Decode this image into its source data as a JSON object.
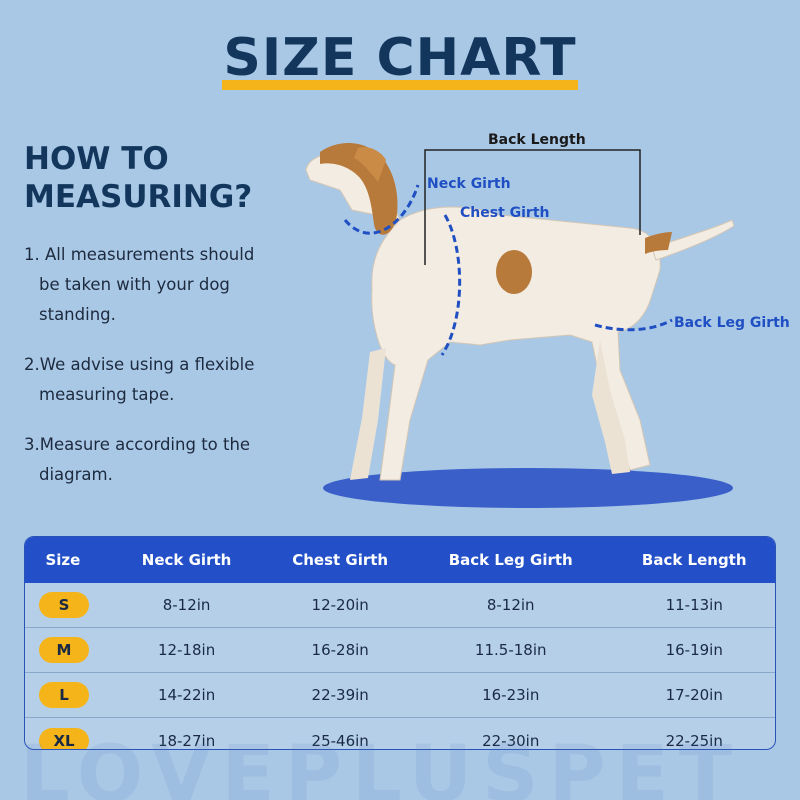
{
  "title": "SIZE CHART",
  "how_to": {
    "heading_line1": "HOW TO",
    "heading_line2": "MEASURING?",
    "steps": [
      {
        "lines": [
          "1. All measurements should",
          "be taken with your dog",
          "standing."
        ]
      },
      {
        "lines": [
          "2.We advise using a flexible",
          "measuring tape."
        ]
      },
      {
        "lines": [
          "3.Measure according to the",
          "diagram."
        ]
      }
    ]
  },
  "diagram": {
    "labels": {
      "back_length": "Back Length",
      "neck_girth": "Neck Girth",
      "chest_girth": "Chest Girth",
      "back_leg_girth": "Back Leg Girth"
    },
    "colors": {
      "measure_line": "#1f4fc2",
      "floor_shadow": "#3a5fc8",
      "dog_body": "#f3ece3",
      "dog_spot": "#b87a3a"
    }
  },
  "table": {
    "headers": [
      "Size",
      "Neck Girth",
      "Chest Girth",
      "Back Leg Girth",
      "Back Length"
    ],
    "rows": [
      {
        "size": "S",
        "neck": "8-12in",
        "chest": "12-20in",
        "leg": "8-12in",
        "back": "11-13in"
      },
      {
        "size": "M",
        "neck": "12-18in",
        "chest": "16-28in",
        "leg": "11.5-18in",
        "back": "16-19in"
      },
      {
        "size": "L",
        "neck": "14-22in",
        "chest": "22-39in",
        "leg": "16-23in",
        "back": "17-20in"
      },
      {
        "size": "XL",
        "neck": "18-27in",
        "chest": "25-46in",
        "leg": "22-30in",
        "back": "22-25in"
      }
    ],
    "colors": {
      "header_bg": "#2350c8",
      "pill": "#f4b41a"
    }
  },
  "watermark": "LOVEPLUSPET"
}
